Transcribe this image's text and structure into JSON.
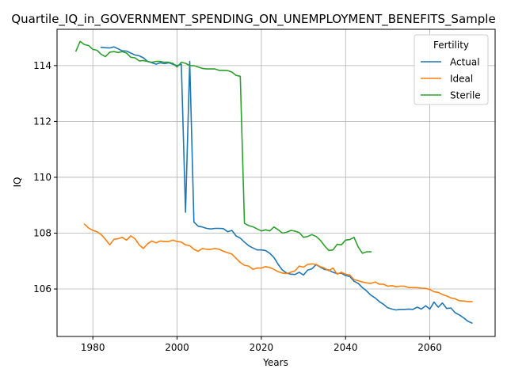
{
  "chart_data": {
    "type": "line",
    "title": "Quartile_IQ_in_GOVERNMENT_SPENDING_ON_UNEMPLOYMENT_BENEFITS_Sample",
    "xlabel": "Years",
    "ylabel": "IQ",
    "xlim": [
      1971.5,
      2075.5
    ],
    "ylim": [
      104.3,
      115.3
    ],
    "xticks": [
      1980,
      2000,
      2020,
      2040,
      2060
    ],
    "yticks": [
      106,
      108,
      110,
      112,
      114
    ],
    "grid": true,
    "legend": {
      "title": "Fertility",
      "placement": "upper right"
    },
    "colors": {
      "Actual": "#1f77b4",
      "Ideal": "#ff7f0e",
      "Sterile": "#2ca02c"
    },
    "series": [
      {
        "name": "Actual",
        "x": [
          1982,
          1983,
          1984,
          1985,
          1986,
          1987,
          1988,
          1989,
          1990,
          1991,
          1992,
          1993,
          1994,
          1995,
          1996,
          1997,
          1998,
          1999,
          2000,
          2001,
          2002,
          2003,
          2004,
          2005,
          2006,
          2007,
          2008,
          2009,
          2010,
          2011,
          2012,
          2013,
          2014,
          2015,
          2016,
          2017,
          2018,
          2019,
          2020,
          2021,
          2022,
          2023,
          2024,
          2025,
          2026,
          2027,
          2028,
          2029,
          2030,
          2031,
          2032,
          2033,
          2034,
          2035,
          2036,
          2037,
          2038,
          2039,
          2040,
          2041,
          2042,
          2043,
          2044,
          2045,
          2046,
          2047,
          2048,
          2049,
          2050,
          2051,
          2052,
          2053,
          2054,
          2055,
          2056,
          2057,
          2058,
          2059,
          2060,
          2061,
          2062,
          2063,
          2064,
          2065,
          2066,
          2067,
          2068,
          2069,
          2070
        ],
        "values": [
          114.65,
          114.64,
          114.63,
          114.67,
          114.6,
          114.53,
          114.52,
          114.45,
          114.38,
          114.35,
          114.28,
          114.15,
          114.1,
          114.05,
          114.1,
          114.07,
          114.1,
          114.05,
          114.0,
          114.05,
          108.75,
          114.15,
          108.4,
          108.25,
          108.22,
          108.17,
          108.15,
          108.17,
          108.17,
          108.16,
          108.05,
          108.1,
          107.9,
          107.82,
          107.68,
          107.55,
          107.47,
          107.4,
          107.4,
          107.38,
          107.28,
          107.13,
          106.88,
          106.68,
          106.57,
          106.53,
          106.52,
          106.6,
          106.5,
          106.68,
          106.72,
          106.87,
          106.78,
          106.7,
          106.68,
          106.6,
          106.55,
          106.57,
          106.48,
          106.45,
          106.28,
          106.2,
          106.05,
          105.93,
          105.78,
          105.68,
          105.55,
          105.45,
          105.33,
          105.28,
          105.25,
          105.27,
          105.27,
          105.28,
          105.27,
          105.35,
          105.28,
          105.4,
          105.28,
          105.53,
          105.35,
          105.5,
          105.3,
          105.32,
          105.15,
          105.07,
          104.97,
          104.85,
          104.78
        ]
      },
      {
        "name": "Ideal",
        "x": [
          1978,
          1979,
          1980,
          1981,
          1982,
          1983,
          1984,
          1985,
          1986,
          1987,
          1988,
          1989,
          1990,
          1991,
          1992,
          1993,
          1994,
          1995,
          1996,
          1997,
          1998,
          1999,
          2000,
          2001,
          2002,
          2003,
          2004,
          2005,
          2006,
          2007,
          2008,
          2009,
          2010,
          2011,
          2012,
          2013,
          2014,
          2015,
          2016,
          2017,
          2018,
          2019,
          2020,
          2021,
          2022,
          2023,
          2024,
          2025,
          2026,
          2027,
          2028,
          2029,
          2030,
          2031,
          2032,
          2033,
          2034,
          2035,
          2036,
          2037,
          2038,
          2039,
          2040,
          2041,
          2042,
          2043,
          2044,
          2045,
          2046,
          2047,
          2048,
          2049,
          2050,
          2051,
          2052,
          2053,
          2054,
          2055,
          2056,
          2057,
          2058,
          2059,
          2060,
          2061,
          2062,
          2063,
          2064,
          2065,
          2066,
          2067,
          2068,
          2069,
          2070
        ],
        "values": [
          108.32,
          108.18,
          108.1,
          108.05,
          107.95,
          107.78,
          107.58,
          107.78,
          107.8,
          107.85,
          107.75,
          107.9,
          107.8,
          107.58,
          107.45,
          107.62,
          107.72,
          107.65,
          107.72,
          107.7,
          107.7,
          107.75,
          107.7,
          107.68,
          107.58,
          107.55,
          107.42,
          107.35,
          107.45,
          107.42,
          107.42,
          107.45,
          107.42,
          107.35,
          107.3,
          107.25,
          107.1,
          106.95,
          106.85,
          106.82,
          106.7,
          106.75,
          106.75,
          106.8,
          106.77,
          106.7,
          106.62,
          106.57,
          106.55,
          106.6,
          106.65,
          106.82,
          106.78,
          106.88,
          106.9,
          106.88,
          106.8,
          106.75,
          106.65,
          106.75,
          106.53,
          106.6,
          106.53,
          106.5,
          106.33,
          106.3,
          106.25,
          106.22,
          106.2,
          106.25,
          106.17,
          106.17,
          106.1,
          106.12,
          106.08,
          106.1,
          106.1,
          106.05,
          106.05,
          106.05,
          106.03,
          106.02,
          105.98,
          105.9,
          105.88,
          105.8,
          105.75,
          105.68,
          105.65,
          105.58,
          105.57,
          105.55,
          105.55
        ]
      },
      {
        "name": "Sterile",
        "x": [
          1976,
          1977,
          1978,
          1979,
          1980,
          1981,
          1982,
          1983,
          1984,
          1985,
          1986,
          1987,
          1988,
          1989,
          1990,
          1991,
          1992,
          1993,
          1994,
          1995,
          1996,
          1997,
          1998,
          1999,
          2000,
          2001,
          2002,
          2003,
          2004,
          2005,
          2006,
          2007,
          2008,
          2009,
          2010,
          2011,
          2012,
          2013,
          2014,
          2015,
          2016,
          2017,
          2018,
          2019,
          2020,
          2021,
          2022,
          2023,
          2024,
          2025,
          2026,
          2027,
          2028,
          2029,
          2030,
          2031,
          2032,
          2033,
          2034,
          2035,
          2036,
          2037,
          2038,
          2039,
          2040,
          2041,
          2042,
          2043,
          2044,
          2045,
          2046
        ],
        "values": [
          114.52,
          114.87,
          114.75,
          114.72,
          114.58,
          114.55,
          114.4,
          114.32,
          114.48,
          114.5,
          114.47,
          114.5,
          114.45,
          114.3,
          114.28,
          114.17,
          114.18,
          114.15,
          114.12,
          114.15,
          114.15,
          114.12,
          114.12,
          114.08,
          113.95,
          114.12,
          114.08,
          114.0,
          114.0,
          113.95,
          113.9,
          113.88,
          113.88,
          113.88,
          113.83,
          113.83,
          113.82,
          113.77,
          113.65,
          113.62,
          108.35,
          108.27,
          108.23,
          108.15,
          108.08,
          108.12,
          108.08,
          108.22,
          108.12,
          108.0,
          108.03,
          108.1,
          108.07,
          108.02,
          107.85,
          107.88,
          107.95,
          107.88,
          107.75,
          107.55,
          107.38,
          107.4,
          107.6,
          107.58,
          107.75,
          107.77,
          107.85,
          107.5,
          107.28,
          107.33,
          107.33
        ]
      }
    ]
  }
}
